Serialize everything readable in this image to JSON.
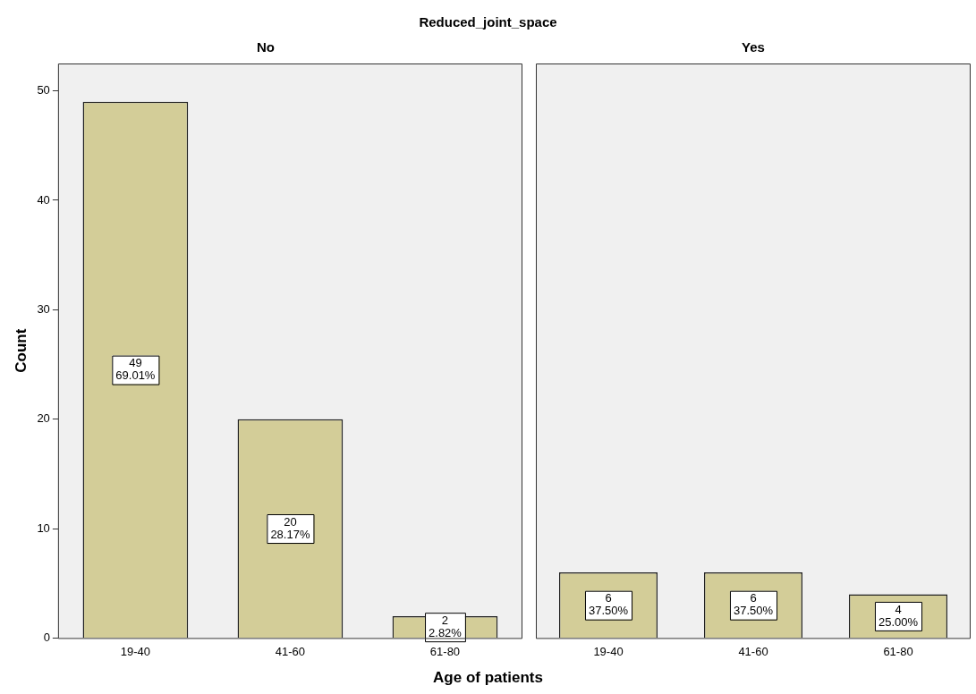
{
  "chart_data": [
    {
      "type": "bar",
      "title": "No",
      "subtitle": "Reduced_joint_space",
      "xlabel": "Age of patients",
      "ylabel": "Count",
      "categories": [
        "19-40",
        "41-60",
        "61-80"
      ],
      "values": [
        49,
        20,
        2
      ],
      "value_labels": [
        "49\n69.01%",
        "20\n28.17%",
        "2\n2.82%"
      ],
      "color": "#d3cd98",
      "ylim": [
        0,
        52.5
      ],
      "yticks": [
        0,
        10,
        20,
        30,
        40,
        50
      ],
      "grid": false,
      "legend": false
    },
    {
      "type": "bar",
      "title": "Yes",
      "categories": [
        "19-40",
        "41-60",
        "61-80"
      ],
      "values": [
        6,
        6,
        4
      ],
      "value_labels": [
        "6\n37.50%",
        "6\n37.50%",
        "4\n25.00%"
      ],
      "color": "#d3cd98",
      "ylim": [
        0,
        52.5
      ],
      "yticks": [
        0,
        10,
        20,
        30,
        40,
        50
      ],
      "grid": false,
      "legend": false,
      "tick_labels": "x"
    }
  ]
}
